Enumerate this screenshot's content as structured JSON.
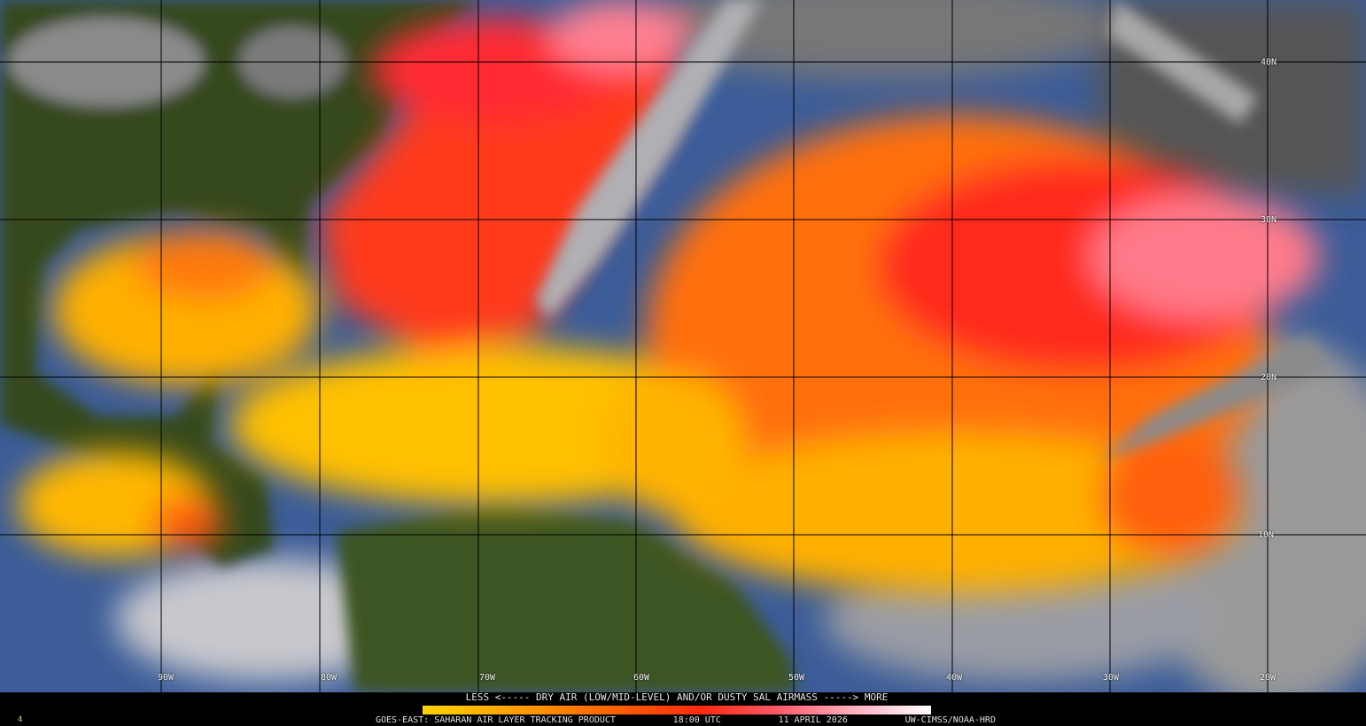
{
  "product": {
    "legend_text": "LESS <----- DRY AIR (LOW/MID-LEVEL) AND/OR DUSTY SAL AIRMASS -----> MORE",
    "legend_colors": [
      "#ffd200",
      "#ffa000",
      "#ff6a00",
      "#ff2a10",
      "#ff5a6a",
      "#ffb0c0",
      "#ffffff"
    ],
    "footer": {
      "satellite_product": "GOES-EAST: SAHARAN AIR LAYER TRACKING PRODUCT",
      "time": "18:00 UTC",
      "date": "11 APRIL 2026",
      "credit": "UW-CIMSS/NOAA-HRD"
    },
    "frame_number": "4"
  },
  "grid": {
    "latitudes": [
      "40N",
      "30N",
      "20N",
      "10N"
    ],
    "longitudes": [
      "90W",
      "80W",
      "70W",
      "60W",
      "50W",
      "40W",
      "30W",
      "20W"
    ]
  }
}
